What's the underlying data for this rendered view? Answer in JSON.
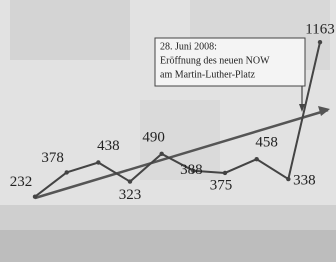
{
  "chart_data": {
    "type": "line",
    "annotation": [
      "28. Juni 2008:",
      "Eröffnung des neuen NOW",
      "am Martin-Luther-Platz"
    ],
    "categories": [
      null,
      null,
      null,
      null,
      null,
      null,
      null,
      null,
      null,
      null
    ],
    "values": [
      232,
      378,
      438,
      323,
      490,
      388,
      375,
      458,
      338,
      1163
    ],
    "color": "#444444",
    "ylim": [
      200,
      1200
    ]
  }
}
